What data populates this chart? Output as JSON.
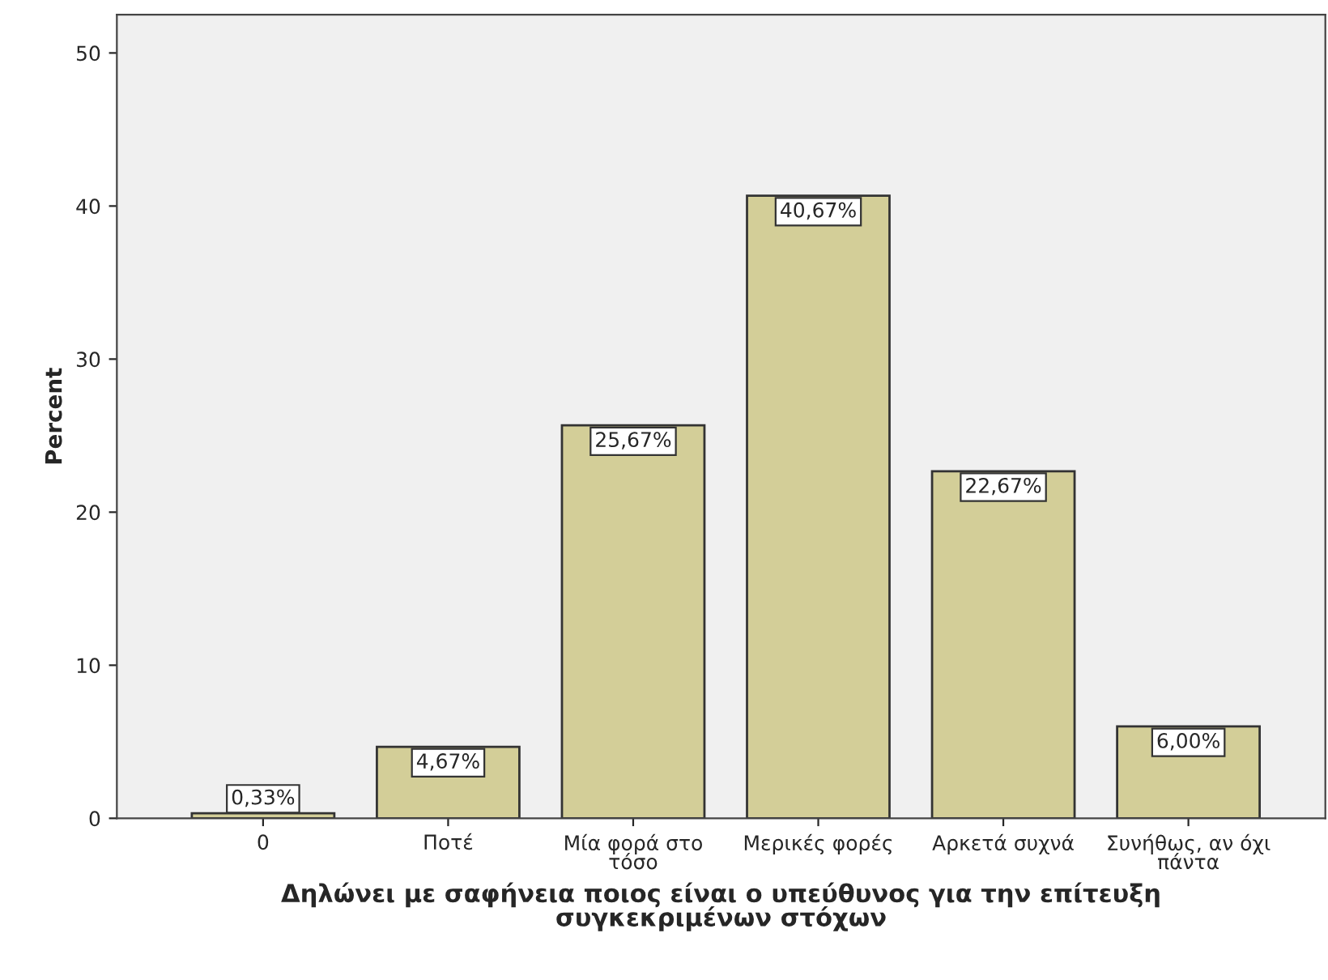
{
  "chart_data": {
    "type": "bar",
    "xlabel": "Δηλώνει με σαφήνεια ποιος είναι ο υπεύθυνος για την επίτευξη συγκεκριμένων στόχων",
    "ylabel": "Percent",
    "categories": [
      "0",
      "Ποτέ",
      "Μία φορά στο τόσο",
      "Μερικές φορές",
      "Αρκετά συχνά",
      "Συνήθως, αν όχι πάντα"
    ],
    "values": [
      0.33,
      4.67,
      25.67,
      40.67,
      22.67,
      6.0
    ],
    "value_labels": [
      "0,33%",
      "4,67%",
      "25,67%",
      "40,67%",
      "22,67%",
      "6,00%"
    ],
    "color": "#d3ce98",
    "ylim": [
      0,
      52.5
    ],
    "yticks": [
      0,
      10,
      20,
      30,
      40,
      50
    ],
    "grid": false,
    "legend": false
  }
}
